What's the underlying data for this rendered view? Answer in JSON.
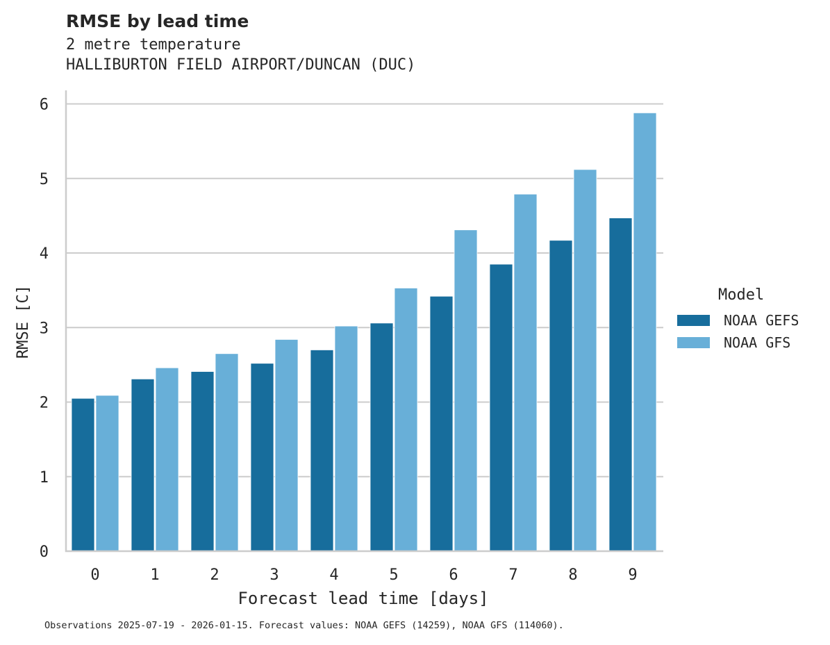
{
  "header": {
    "title": "RMSE by lead time",
    "subtitle_line1": "2 metre temperature",
    "subtitle_line2": "HALLIBURTON FIELD AIRPORT/DUNCAN (DUC)"
  },
  "footnote": "Observations 2025-07-19 - 2026-01-15. Forecast values: NOAA GEFS (14259), NOAA GFS (114060).",
  "legend": {
    "title": "Model",
    "items": [
      {
        "label": "NOAA GEFS",
        "color": "#176d9c"
      },
      {
        "label": "NOAA GFS",
        "color": "#68afd8"
      }
    ]
  },
  "chart_data": {
    "type": "bar",
    "title": "RMSE by lead time",
    "subtitle": "2 metre temperature — HALLIBURTON FIELD AIRPORT/DUNCAN (DUC)",
    "xlabel": "Forecast lead time [days]",
    "ylabel": "RMSE [C]",
    "categories": [
      "0",
      "1",
      "2",
      "3",
      "4",
      "5",
      "6",
      "7",
      "8",
      "9"
    ],
    "series": [
      {
        "name": "NOAA GEFS",
        "color": "#176d9c",
        "values": [
          2.05,
          2.31,
          2.41,
          2.52,
          2.7,
          3.06,
          3.42,
          3.85,
          4.17,
          4.47
        ]
      },
      {
        "name": "NOAA GFS",
        "color": "#68afd8",
        "values": [
          2.09,
          2.46,
          2.65,
          2.84,
          3.02,
          3.53,
          4.31,
          4.79,
          5.12,
          5.88
        ]
      }
    ],
    "yticks": [
      0,
      1,
      2,
      3,
      4,
      5,
      6
    ],
    "ylim": [
      0,
      6.18
    ],
    "grid": "horizontal",
    "legend_position": "right",
    "legend_title": "Model"
  }
}
